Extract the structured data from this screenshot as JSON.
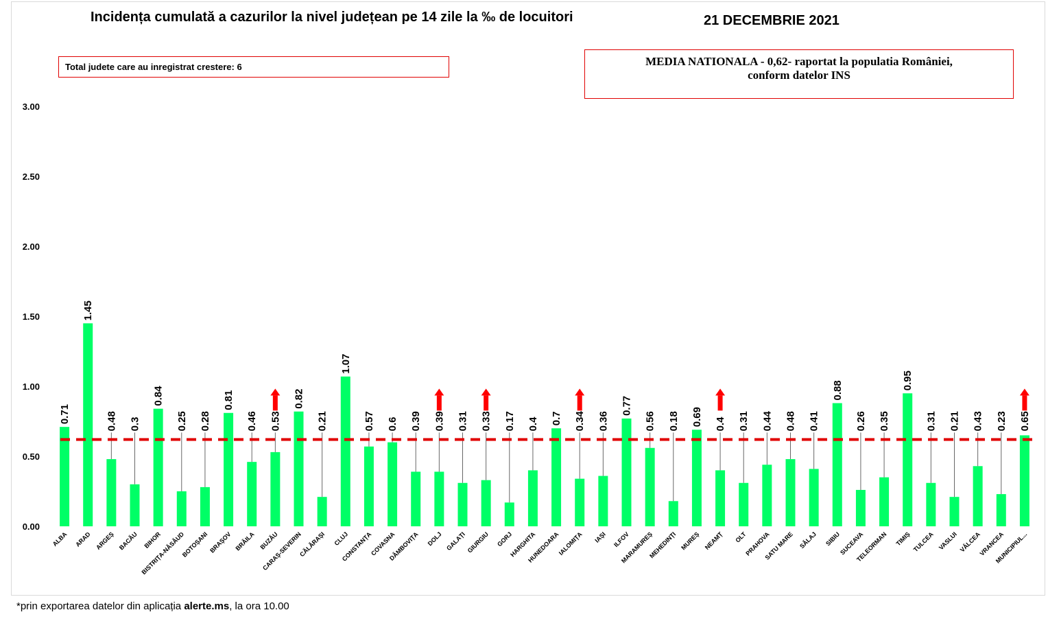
{
  "header": {
    "title": "Incidența cumulată a cazurilor la nivel județean pe 14 zile la ‰ de locuitori",
    "date": "21 DECEMBRIE 2021"
  },
  "info_left": "Total judete care au inregistrat crestere: 6",
  "info_right": {
    "line1": "MEDIA NATIONALA - 0,62-  raportat la populatia României,",
    "line2": "conform datelor INS"
  },
  "footnote": {
    "prefix": "*prin exportarea datelor din aplicația ",
    "app": "alerte.ms",
    "suffix": ", la ora 10.00"
  },
  "colors": {
    "bar": "#00ff66",
    "average_line": "#e00000",
    "arrow": "#ff0000",
    "box_border": "#e00000"
  },
  "chart_data": {
    "type": "bar",
    "title": "Incidența cumulată a cazurilor la nivel județean pe 14 zile la ‰ de locuitori",
    "xlabel": "",
    "ylabel": "",
    "ylim": [
      0,
      3
    ],
    "yticks": [
      "0.00",
      "0.50",
      "1.00",
      "1.50",
      "2.00",
      "2.50",
      "3.00"
    ],
    "grid": false,
    "reference_line": {
      "value": 0.62,
      "label": "MEDIA NATIONALA"
    },
    "categories": [
      "ALBA",
      "ARAD",
      "ARGEȘ",
      "BACĂU",
      "BIHOR",
      "BISTRIȚA-NĂSĂUD",
      "BOTOȘANI",
      "BRAȘOV",
      "BRĂILA",
      "BUZĂU",
      "CARAȘ-SEVERIN",
      "CĂLĂRAȘI",
      "CLUJ",
      "CONSTANȚA",
      "COVASNA",
      "DÂMBOVIȚA",
      "DOLJ",
      "GALAȚI",
      "GIURGIU",
      "GORJ",
      "HARGHITA",
      "HUNEDOARA",
      "IALOMIȚA",
      "IAȘI",
      "ILFOV",
      "MARAMUREȘ",
      "MEHEDINȚI",
      "MUREȘ",
      "NEAMȚ",
      "OLT",
      "PRAHOVA",
      "SATU MARE",
      "SĂLAJ",
      "SIBIU",
      "SUCEAVA",
      "TELEORMAN",
      "TIMIȘ",
      "TULCEA",
      "VASLUI",
      "VÂLCEA",
      "VRANCEA",
      "MUNICIPIUL..."
    ],
    "values": [
      0.71,
      1.45,
      0.48,
      0.3,
      0.84,
      0.25,
      0.28,
      0.81,
      0.46,
      0.53,
      0.82,
      0.21,
      1.07,
      0.57,
      0.6,
      0.39,
      0.39,
      0.31,
      0.33,
      0.17,
      0.4,
      0.7,
      0.34,
      0.36,
      0.77,
      0.56,
      0.18,
      0.69,
      0.4,
      0.31,
      0.44,
      0.48,
      0.41,
      0.88,
      0.26,
      0.35,
      0.95,
      0.31,
      0.21,
      0.43,
      0.23,
      0.65
    ],
    "value_labels": [
      "0.71",
      "1.45",
      "0.48",
      "0.3",
      "0.84",
      "0.25",
      "0.28",
      "0.81",
      "0.46",
      "0.53",
      "0.82",
      "0.21",
      "1.07",
      "0.57",
      "0.6",
      "0.39",
      "0.39",
      "0.31",
      "0.33",
      "0.17",
      "0.4",
      "0.7",
      "0.34",
      "0.36",
      "0.77",
      "0.56",
      "0.18",
      "0.69",
      "0.4",
      "0.31",
      "0.44",
      "0.48",
      "0.41",
      "0.88",
      "0.26",
      "0.35",
      "0.95",
      "0.31",
      "0.21",
      "0.43",
      "0.23",
      "0.65"
    ],
    "increase_markers": [
      "BUZĂU",
      "DOLJ",
      "GIURGIU",
      "IALOMIȚA",
      "NEAMȚ",
      "MUNICIPIUL..."
    ]
  }
}
